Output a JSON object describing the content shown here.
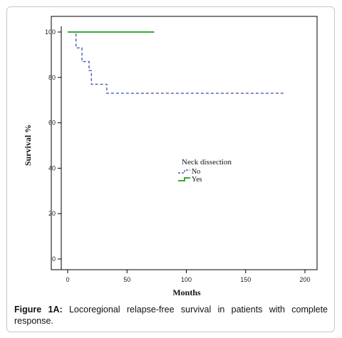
{
  "chart_data": {
    "type": "line",
    "step": true,
    "xlabel": "Months",
    "ylabel": "Survival %",
    "xlim": [
      0,
      200
    ],
    "ylim": [
      0,
      100
    ],
    "xticks": [
      0,
      50,
      100,
      150,
      200
    ],
    "yticks": [
      0,
      20,
      40,
      60,
      80,
      100
    ],
    "grid": false,
    "legend": {
      "title": "Neck dissection",
      "placement": "center-right"
    },
    "series": [
      {
        "name": "No",
        "color": "#4a5bb8",
        "dash": "dashed",
        "points": [
          [
            0,
            100
          ],
          [
            7,
            100
          ],
          [
            7,
            93
          ],
          [
            12,
            93
          ],
          [
            12,
            87
          ],
          [
            18,
            87
          ],
          [
            18,
            83
          ],
          [
            20,
            83
          ],
          [
            20,
            77
          ],
          [
            33,
            77
          ],
          [
            33,
            73
          ],
          [
            182,
            73
          ]
        ]
      },
      {
        "name": "Yes",
        "color": "#3aaa35",
        "dash": "solid",
        "points": [
          [
            0,
            100
          ],
          [
            73,
            100
          ]
        ]
      }
    ]
  },
  "caption": {
    "label": "Figure 1A:",
    "text": "Locoregional relapse-free survival in patients with complete response."
  }
}
